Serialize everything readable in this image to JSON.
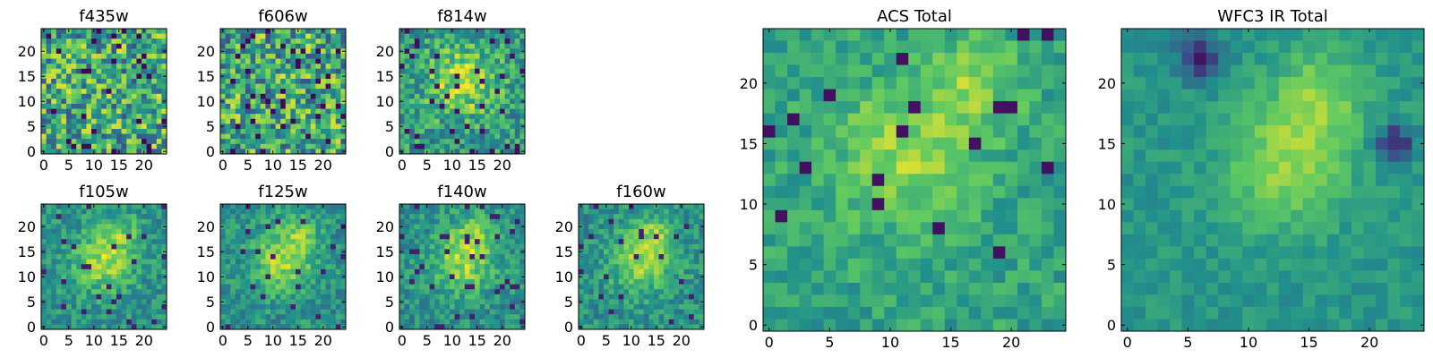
{
  "figure": {
    "colormap": "viridis",
    "colormap_stops": [
      "#440154",
      "#3b528b",
      "#21918c",
      "#5ec962",
      "#fde725"
    ],
    "background": "#ffffff"
  },
  "chart_data": [
    {
      "type": "heatmap",
      "title": "f435w",
      "grid_size": 25,
      "x_ticks": [
        "0",
        "5",
        "10",
        "15",
        "20"
      ],
      "y_ticks": [
        "0",
        "5",
        "10",
        "15",
        "20"
      ],
      "xlim": [
        -0.5,
        24.5
      ],
      "ylim": [
        -0.5,
        24.5
      ],
      "pattern": "noise",
      "seed": 11
    },
    {
      "type": "heatmap",
      "title": "f606w",
      "grid_size": 25,
      "x_ticks": [
        "0",
        "5",
        "10",
        "15",
        "20"
      ],
      "y_ticks": [
        "0",
        "5",
        "10",
        "15",
        "20"
      ],
      "xlim": [
        -0.5,
        24.5
      ],
      "ylim": [
        -0.5,
        24.5
      ],
      "pattern": "noise",
      "seed": 23
    },
    {
      "type": "heatmap",
      "title": "f814w",
      "grid_size": 25,
      "x_ticks": [
        "0",
        "5",
        "10",
        "15",
        "20"
      ],
      "y_ticks": [
        "0",
        "5",
        "10",
        "15",
        "20"
      ],
      "xlim": [
        -0.5,
        24.5
      ],
      "ylim": [
        -0.5,
        24.5
      ],
      "pattern": "faint_source",
      "seed": 37
    },
    {
      "type": "heatmap",
      "title": "f105w",
      "grid_size": 25,
      "x_ticks": [
        "0",
        "5",
        "10",
        "15",
        "20"
      ],
      "y_ticks": [
        "0",
        "5",
        "10",
        "15",
        "20"
      ],
      "xlim": [
        -0.5,
        24.5
      ],
      "ylim": [
        -0.5,
        24.5
      ],
      "pattern": "source",
      "seed": 41
    },
    {
      "type": "heatmap",
      "title": "f125w",
      "grid_size": 25,
      "x_ticks": [
        "0",
        "5",
        "10",
        "15",
        "20"
      ],
      "y_ticks": [
        "0",
        "5",
        "10",
        "15",
        "20"
      ],
      "xlim": [
        -0.5,
        24.5
      ],
      "ylim": [
        -0.5,
        24.5
      ],
      "pattern": "source",
      "seed": 53
    },
    {
      "type": "heatmap",
      "title": "f140w",
      "grid_size": 25,
      "x_ticks": [
        "0",
        "5",
        "10",
        "15",
        "20"
      ],
      "y_ticks": [
        "0",
        "5",
        "10",
        "15",
        "20"
      ],
      "xlim": [
        -0.5,
        24.5
      ],
      "ylim": [
        -0.5,
        24.5
      ],
      "pattern": "source",
      "seed": 67
    },
    {
      "type": "heatmap",
      "title": "f160w",
      "grid_size": 25,
      "x_ticks": [
        "0",
        "5",
        "10",
        "15",
        "20"
      ],
      "y_ticks": [
        "0",
        "5",
        "10",
        "15",
        "20"
      ],
      "xlim": [
        -0.5,
        24.5
      ],
      "ylim": [
        -0.5,
        24.5
      ],
      "pattern": "source",
      "seed": 79
    },
    {
      "type": "heatmap",
      "title": "ACS Total",
      "grid_size": 25,
      "x_ticks": [
        "0",
        "5",
        "10",
        "15",
        "20"
      ],
      "y_ticks": [
        "0",
        "5",
        "10",
        "15",
        "20"
      ],
      "xlim": [
        -0.5,
        24.5
      ],
      "ylim": [
        -0.5,
        24.5
      ],
      "pattern": "total_acs",
      "seed": 83
    },
    {
      "type": "heatmap",
      "title": "WFC3 IR Total",
      "grid_size": 25,
      "x_ticks": [
        "0",
        "5",
        "10",
        "15",
        "20"
      ],
      "y_ticks": [
        "0",
        "5",
        "10",
        "15",
        "20"
      ],
      "xlim": [
        -0.5,
        24.5
      ],
      "ylim": [
        -0.5,
        24.5
      ],
      "pattern": "total_ir",
      "seed": 97
    }
  ]
}
